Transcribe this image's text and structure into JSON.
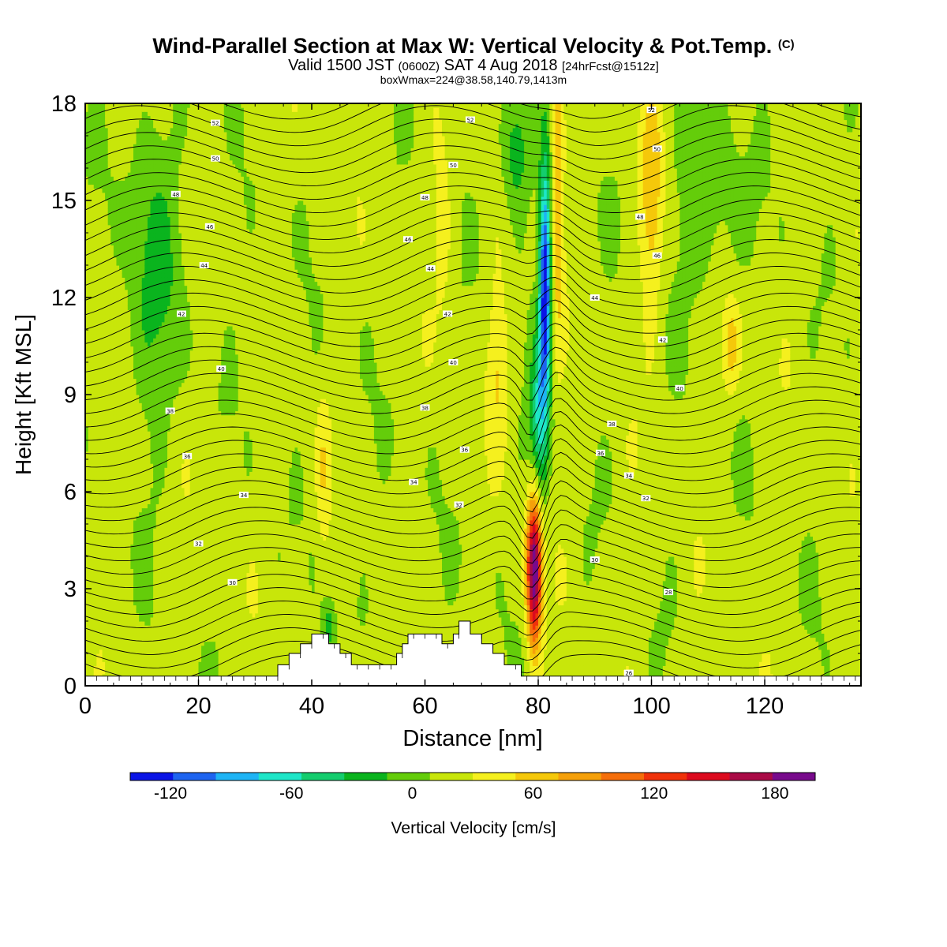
{
  "title": {
    "main": "Wind-Parallel Section at Max W: Vertical Velocity & Pot.Temp.",
    "copyright": "(C)",
    "valid_prefix": "Valid 1500 JST",
    "valid_utc": "(0600Z)",
    "valid_date": "SAT 4 Aug 2018",
    "forecast": "[24hrFcst@1512z]",
    "box_info": "boxWmax=224@38.58,140.79,1413m"
  },
  "chart_data": {
    "type": "heatmap",
    "xlabel": "Distance [nm]",
    "ylabel": "Height [Kft MSL]",
    "xlim": [
      0,
      137
    ],
    "ylim": [
      0,
      18
    ],
    "x_ticks": [
      0,
      20,
      40,
      60,
      80,
      100,
      120
    ],
    "y_ticks": [
      0,
      3,
      6,
      9,
      12,
      15,
      18
    ],
    "grid": false,
    "colorbar": {
      "label": "Vertical Velocity [cm/s]",
      "levels": [
        -140,
        -120,
        -100,
        -80,
        -60,
        -40,
        -20,
        0,
        20,
        40,
        60,
        80,
        100,
        120,
        140,
        160,
        180,
        200
      ],
      "tick_values": [
        -120,
        -60,
        0,
        60,
        120,
        180
      ],
      "tick_labels": [
        "-120",
        "-60",
        "0",
        "60",
        "120",
        "180"
      ],
      "colors": [
        "#0a14e6",
        "#1e64f0",
        "#1eb4f5",
        "#1ee6c8",
        "#14cd6e",
        "#0ab41e",
        "#64cd0a",
        "#c8e60a",
        "#f5f01e",
        "#f5c80a",
        "#f5a00a",
        "#f56e0a",
        "#f0320a",
        "#dc0a1e",
        "#aa0a46",
        "#780a8c"
      ]
    },
    "features": [
      {
        "name": "strong updraft",
        "x": 79,
        "y_range": [
          0.5,
          6
        ],
        "peak_w": 160
      },
      {
        "name": "strong downdraft",
        "x": 81,
        "y_range": [
          6,
          17
        ],
        "min_w": -120
      },
      {
        "name": "upper updraft band",
        "x": 83,
        "y_range": [
          9,
          18
        ],
        "peak_w": 60
      },
      {
        "name": "upper updraft",
        "x": 100,
        "y_range": [
          12,
          18
        ],
        "peak_w": 50
      }
    ],
    "terrain": {
      "x": [
        0,
        33,
        34,
        35,
        36,
        37,
        38,
        39,
        40,
        41,
        42,
        43,
        44,
        45,
        46,
        47,
        48,
        50,
        52,
        54,
        55,
        56,
        57,
        58,
        59,
        60,
        61,
        62,
        63,
        64,
        65,
        66,
        67,
        68,
        69,
        70,
        71,
        72,
        73,
        74,
        75,
        76,
        77,
        78,
        79,
        80,
        137
      ],
      "height_kft": [
        0.3,
        0.3,
        0.65,
        0.65,
        1.0,
        1.0,
        1.3,
        1.3,
        1.6,
        1.6,
        1.6,
        1.3,
        1.3,
        1.0,
        1.0,
        0.65,
        0.65,
        0.65,
        0.65,
        0.65,
        1.0,
        1.3,
        1.6,
        1.6,
        1.6,
        1.6,
        1.6,
        1.6,
        1.3,
        1.3,
        1.6,
        2.0,
        2.0,
        1.6,
        1.6,
        1.3,
        1.3,
        1.0,
        1.0,
        0.65,
        0.65,
        0.65,
        0.3,
        0.3,
        0.3,
        0.3,
        0.3
      ]
    },
    "theta_contour_labels": [
      {
        "x": 23,
        "y": 17.4,
        "label": "52"
      },
      {
        "x": 23,
        "y": 16.3,
        "label": "50"
      },
      {
        "x": 16,
        "y": 15.2,
        "label": "48"
      },
      {
        "x": 22,
        "y": 14.2,
        "label": "46"
      },
      {
        "x": 21,
        "y": 13.0,
        "label": "44"
      },
      {
        "x": 17,
        "y": 11.5,
        "label": "42"
      },
      {
        "x": 24,
        "y": 9.8,
        "label": "40"
      },
      {
        "x": 15,
        "y": 8.5,
        "label": "38"
      },
      {
        "x": 18,
        "y": 7.1,
        "label": "36"
      },
      {
        "x": 28,
        "y": 5.9,
        "label": "34"
      },
      {
        "x": 20,
        "y": 4.4,
        "label": "32"
      },
      {
        "x": 26,
        "y": 3.2,
        "label": "30"
      },
      {
        "x": 68,
        "y": 17.5,
        "label": "52"
      },
      {
        "x": 65,
        "y": 16.1,
        "label": "50"
      },
      {
        "x": 60,
        "y": 15.1,
        "label": "48"
      },
      {
        "x": 57,
        "y": 13.8,
        "label": "46"
      },
      {
        "x": 61,
        "y": 12.9,
        "label": "44"
      },
      {
        "x": 64,
        "y": 11.5,
        "label": "42"
      },
      {
        "x": 65,
        "y": 10.0,
        "label": "40"
      },
      {
        "x": 60,
        "y": 8.6,
        "label": "38"
      },
      {
        "x": 67,
        "y": 7.3,
        "label": "36"
      },
      {
        "x": 58,
        "y": 6.3,
        "label": "34"
      },
      {
        "x": 66,
        "y": 5.6,
        "label": "32"
      },
      {
        "x": 100,
        "y": 17.8,
        "label": "52"
      },
      {
        "x": 101,
        "y": 16.6,
        "label": "50"
      },
      {
        "x": 98,
        "y": 14.5,
        "label": "48"
      },
      {
        "x": 101,
        "y": 13.3,
        "label": "46"
      },
      {
        "x": 90,
        "y": 12.0,
        "label": "44"
      },
      {
        "x": 102,
        "y": 10.7,
        "label": "42"
      },
      {
        "x": 105,
        "y": 9.2,
        "label": "40"
      },
      {
        "x": 93,
        "y": 8.1,
        "label": "38"
      },
      {
        "x": 91,
        "y": 7.2,
        "label": "36"
      },
      {
        "x": 96,
        "y": 6.5,
        "label": "34"
      },
      {
        "x": 99,
        "y": 5.8,
        "label": "32"
      },
      {
        "x": 90,
        "y": 3.9,
        "label": "30"
      },
      {
        "x": 103,
        "y": 2.9,
        "label": "28"
      },
      {
        "x": 96,
        "y": 0.4,
        "label": "26"
      }
    ]
  }
}
